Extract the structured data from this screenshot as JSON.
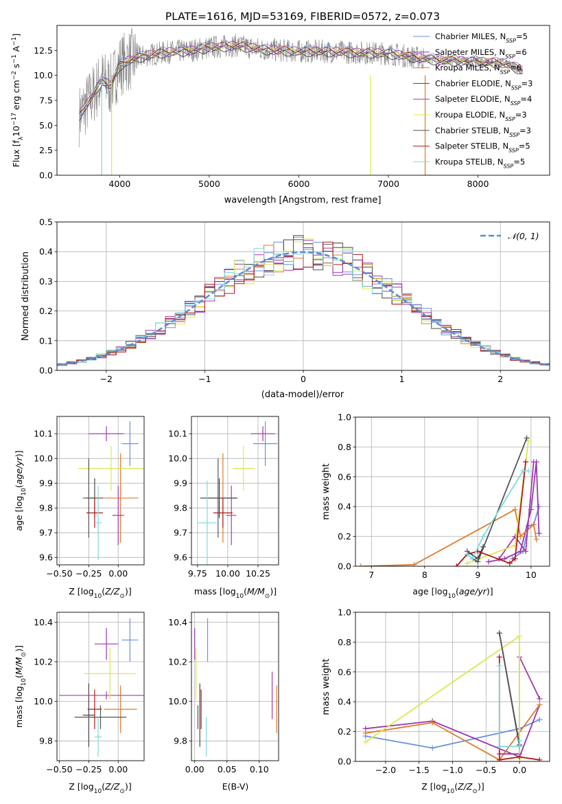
{
  "title": "PLATE=1616, MJD=53169, FIBERID=0572, z=0.073",
  "colors": [
    "#6b8fe0",
    "#9b35b0",
    "#e07a2a",
    "#444444",
    "#a23aa8",
    "#dce84a",
    "#555555",
    "#b01818",
    "#7fd8dc"
  ],
  "series_names": [
    "Chabrier MILES, N_SSP=5",
    "Salpeter MILES, N_SSP=6",
    "Kroupa MILES, N_SSP=6",
    "Chabrier ELODIE, N_SSP=3",
    "Salpeter ELODIE, N_SSP=4",
    "Kroupa ELODIE, N_SSP=3",
    "Chabrier STELIB, N_SSP=3",
    "Salpeter STELIB, N_SSP=5",
    "Kroupa STELIB, N_SSP=5"
  ],
  "chart_data": [
    {
      "id": "spectrum",
      "type": "line",
      "xlabel": "wavelength [Angstrom, rest frame]",
      "ylabel": "Flux [f_λ 10^-17 erg cm^-2 s^-1 A^-1]",
      "xlim": [
        3300,
        8800
      ],
      "ylim": [
        0,
        15
      ],
      "xticks": [
        4000,
        5000,
        6000,
        7000,
        8000
      ],
      "yticks": [
        0.0,
        2.5,
        5.0,
        7.5,
        10.0,
        12.5
      ],
      "grid": false,
      "legend": "right",
      "continuum": {
        "x": [
          3550,
          3700,
          3800,
          3900,
          4000,
          4100,
          4300,
          4500,
          4800,
          5000,
          5300,
          5600,
          6000,
          6300,
          6600,
          7000,
          7300,
          7600,
          8000,
          8300,
          8500
        ],
        "y": [
          6.0,
          8.0,
          9.5,
          9.0,
          11.0,
          11.5,
          12.0,
          12.3,
          12.5,
          12.8,
          13.0,
          12.6,
          12.4,
          12.4,
          12.3,
          12.2,
          11.8,
          11.5,
          11.4,
          11.2,
          10.5
        ]
      }
    },
    {
      "id": "residuals",
      "type": "bar",
      "xlabel": "(data-model)/error",
      "ylabel": "Normed distribution",
      "xlim": [
        -2.5,
        2.5
      ],
      "ylim": [
        0,
        0.5
      ],
      "xticks": [
        -2,
        -1,
        0,
        1,
        2
      ],
      "yticks": [
        0.0,
        0.1,
        0.2,
        0.3,
        0.4,
        0.5
      ],
      "grid": true,
      "legend": "top-right",
      "gaussian_label": "N(0,1)"
    },
    {
      "id": "age_vs_Z",
      "type": "scatter",
      "xlabel": "Z [log10(Z/Z☉)]",
      "ylabel": "age [log10(age/yr)]",
      "xlim": [
        -0.52,
        0.22
      ],
      "ylim": [
        9.57,
        10.17
      ],
      "xticks": [
        -0.5,
        -0.25,
        0.0
      ],
      "yticks": [
        9.6,
        9.7,
        9.8,
        9.9,
        10.0,
        10.1
      ],
      "points": [
        {
          "x": 0.1,
          "y": 10.06,
          "dx": 0.07,
          "dy": 0.09
        },
        {
          "x": -0.1,
          "y": 10.1,
          "dx": 0.15,
          "dy": 0.03
        },
        {
          "x": 0.02,
          "y": 9.84,
          "dx": 0.15,
          "dy": 0.18
        },
        {
          "x": -0.2,
          "y": 9.84,
          "dx": 0.07,
          "dy": 0.08
        },
        {
          "x": 0.0,
          "y": 9.77,
          "dx": 0.05,
          "dy": 0.12
        },
        {
          "x": -0.06,
          "y": 9.96,
          "dx": 0.28,
          "dy": 0.09
        },
        {
          "x": -0.25,
          "y": 9.84,
          "dx": 0.05,
          "dy": 0.16
        },
        {
          "x": -0.2,
          "y": 9.78,
          "dx": 0.07,
          "dy": 0.06
        },
        {
          "x": -0.17,
          "y": 9.74,
          "dx": 0.03,
          "dy": 0.15
        }
      ]
    },
    {
      "id": "age_vs_mass",
      "type": "scatter",
      "xlabel": "mass [log10(M/M☉)]",
      "ylabel": "",
      "xlim": [
        9.7,
        10.42
      ],
      "ylim": [
        9.57,
        10.17
      ],
      "xticks": [
        9.75,
        10.0,
        10.25
      ],
      "yticks": [
        9.6,
        9.7,
        9.8,
        9.9,
        10.0,
        10.1
      ],
      "points": [
        {
          "x": 10.31,
          "y": 10.06,
          "dx": 0.1,
          "dy": 0.09
        },
        {
          "x": 10.29,
          "y": 10.1,
          "dx": 0.1,
          "dy": 0.03
        },
        {
          "x": 9.96,
          "y": 9.84,
          "dx": 0.12,
          "dy": 0.18
        },
        {
          "x": 9.93,
          "y": 9.84,
          "dx": 0.15,
          "dy": 0.08
        },
        {
          "x": 10.03,
          "y": 9.77,
          "dx": 0.04,
          "dy": 0.12
        },
        {
          "x": 10.13,
          "y": 9.96,
          "dx": 0.09,
          "dy": 0.09
        },
        {
          "x": 9.92,
          "y": 9.84,
          "dx": 0.15,
          "dy": 0.16
        },
        {
          "x": 9.96,
          "y": 9.78,
          "dx": 0.08,
          "dy": 0.06
        },
        {
          "x": 9.83,
          "y": 9.74,
          "dx": 0.08,
          "dy": 0.17
        }
      ]
    },
    {
      "id": "massweight_vs_age",
      "type": "line",
      "xlabel": "age [log10(age/yr)]",
      "ylabel": "mass weight",
      "xlim": [
        6.7,
        10.35
      ],
      "ylim": [
        0,
        1.0
      ],
      "xticks": [
        7,
        8,
        9,
        10
      ],
      "yticks": [
        0.0,
        0.2,
        0.4,
        0.6,
        0.8,
        1.0
      ],
      "series": [
        {
          "x": [
            9.65,
            9.85,
            9.95,
            10.05,
            10.15
          ],
          "y": [
            0.05,
            0.1,
            0.27,
            0.28,
            0.4
          ]
        },
        {
          "x": [
            9.2,
            9.5,
            9.8,
            10.0,
            10.1,
            10.15
          ],
          "y": [
            0.03,
            0.05,
            0.1,
            0.38,
            0.7,
            0.22
          ]
        },
        {
          "x": [
            6.8,
            7.8,
            9.7,
            9.8,
            10.05,
            10.1
          ],
          "y": [
            0.0,
            0.01,
            0.38,
            0.2,
            0.28,
            0.18
          ]
        },
        {
          "x": [
            8.8,
            9.0,
            9.1
          ],
          "y": [
            0.1,
            0.05,
            0.13
          ]
        },
        {
          "x": [
            9.4,
            9.7,
            9.9,
            10.05
          ],
          "y": [
            0.05,
            0.2,
            0.1,
            0.7
          ]
        },
        {
          "x": [
            8.8,
            9.7,
            9.95
          ],
          "y": [
            0.02,
            0.14,
            0.84
          ]
        },
        {
          "x": [
            8.9,
            9.0,
            9.92
          ],
          "y": [
            0.05,
            0.03,
            0.86
          ]
        },
        {
          "x": [
            8.6,
            8.8,
            9.0,
            9.6,
            9.7,
            9.9
          ],
          "y": [
            0.0,
            0.08,
            0.1,
            0.02,
            0.05,
            0.7
          ]
        },
        {
          "x": [
            8.8,
            8.9,
            9.1,
            9.85,
            9.95
          ],
          "y": [
            0.08,
            0.05,
            0.2,
            0.64,
            0.64
          ]
        }
      ]
    },
    {
      "id": "mass_vs_Z",
      "type": "scatter",
      "xlabel": "Z [log10(Z/Z☉)]",
      "ylabel": "mass [log10(M/M☉)]",
      "xlim": [
        -0.52,
        0.22
      ],
      "ylim": [
        9.7,
        10.45
      ],
      "xticks": [
        -0.5,
        -0.25,
        0.0
      ],
      "yticks": [
        9.8,
        10.0,
        10.2,
        10.4
      ],
      "points": [
        {
          "x": 0.1,
          "y": 10.31,
          "dx": 0.07,
          "dy": 0.11
        },
        {
          "x": -0.1,
          "y": 10.29,
          "dx": 0.1,
          "dy": 0.08
        },
        {
          "x": 0.02,
          "y": 9.96,
          "dx": 0.14,
          "dy": 0.12
        },
        {
          "x": -0.25,
          "y": 9.93,
          "dx": 0.05,
          "dy": 0.16
        },
        {
          "x": -0.1,
          "y": 10.03,
          "dx": 0.4,
          "dy": 0.02
        },
        {
          "x": -0.07,
          "y": 10.14,
          "dx": 0.22,
          "dy": 0.13
        },
        {
          "x": -0.15,
          "y": 9.92,
          "dx": 0.22,
          "dy": 0.06
        },
        {
          "x": -0.2,
          "y": 9.96,
          "dx": 0.06,
          "dy": 0.1
        },
        {
          "x": -0.17,
          "y": 9.82,
          "dx": 0.03,
          "dy": 0.1
        }
      ]
    },
    {
      "id": "mass_vs_EBV",
      "type": "scatter",
      "xlabel": "E(B-V)",
      "ylabel": "",
      "xlim": [
        -0.005,
        0.13
      ],
      "ylim": [
        9.7,
        10.45
      ],
      "xticks": [
        0.0,
        0.05,
        0.1
      ],
      "yticks": [
        9.8,
        10.0,
        10.2,
        10.4
      ],
      "points": [
        {
          "x": 0.02,
          "y": 10.31,
          "dx": 0.0,
          "dy": 0.11
        },
        {
          "x": 0.0,
          "y": 10.29,
          "dx": 0.0,
          "dy": 0.08
        },
        {
          "x": 0.127,
          "y": 9.96,
          "dx": 0.0,
          "dy": 0.12
        },
        {
          "x": 0.008,
          "y": 9.93,
          "dx": 0.0,
          "dy": 0.16
        },
        {
          "x": 0.12,
          "y": 10.03,
          "dx": 0.0,
          "dy": 0.12
        },
        {
          "x": 0.002,
          "y": 10.14,
          "dx": 0.0,
          "dy": 0.13
        },
        {
          "x": 0.005,
          "y": 9.92,
          "dx": 0.0,
          "dy": 0.06
        },
        {
          "x": 0.01,
          "y": 9.96,
          "dx": 0.0,
          "dy": 0.1
        },
        {
          "x": 0.018,
          "y": 9.82,
          "dx": 0.0,
          "dy": 0.1
        }
      ]
    },
    {
      "id": "massweight_vs_Z",
      "type": "line",
      "xlabel": "Z [log10(Z/Z☉)]",
      "ylabel": "mass weight",
      "xlim": [
        -2.45,
        0.45
      ],
      "ylim": [
        0,
        1.0
      ],
      "xticks": [
        -2.0,
        -1.5,
        -1.0,
        -0.5,
        0.0
      ],
      "yticks": [
        0.0,
        0.2,
        0.4,
        0.6,
        0.8,
        1.0
      ],
      "series": [
        {
          "x": [
            -2.3,
            -1.3,
            0.0,
            0.3
          ],
          "y": [
            0.17,
            0.09,
            0.22,
            0.28
          ]
        },
        {
          "x": [
            -2.3,
            -1.3,
            0.0,
            0.3
          ],
          "y": [
            0.22,
            0.27,
            0.03,
            0.38
          ]
        },
        {
          "x": [
            -2.3,
            -1.3,
            -0.3,
            0.3
          ],
          "y": [
            0.19,
            0.26,
            0.01,
            0.38
          ]
        },
        {
          "x": [
            -0.3,
            0.0,
            0.0
          ],
          "y": [
            0.86,
            0.11,
            0.03
          ]
        },
        {
          "x": [
            -0.3,
            0.0,
            0.0,
            0.3
          ],
          "y": [
            0.05,
            0.05,
            0.7,
            0.42
          ]
        },
        {
          "x": [
            -2.3,
            0.0,
            0.0
          ],
          "y": [
            0.13,
            0.84,
            0.02
          ]
        },
        {
          "x": [
            -0.3,
            0.0
          ],
          "y": [
            0.86,
            0.1
          ]
        },
        {
          "x": [
            -0.3,
            -0.3,
            0.0,
            0.3
          ],
          "y": [
            0.7,
            0.01,
            0.03,
            0.01
          ]
        },
        {
          "x": [
            -0.3,
            -0.3,
            0.0,
            0.0
          ],
          "y": [
            0.64,
            0.1,
            0.1,
            0.14
          ]
        }
      ]
    }
  ]
}
